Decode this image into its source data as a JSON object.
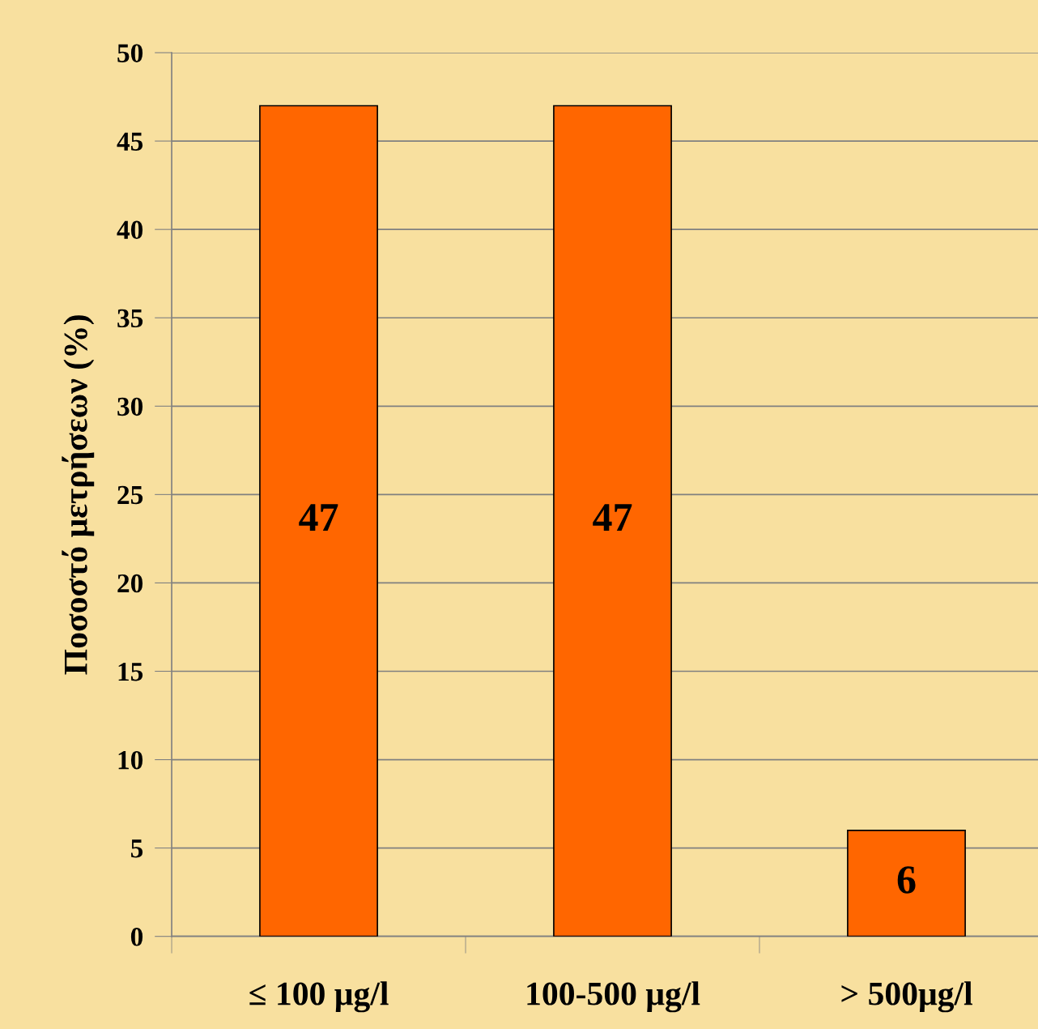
{
  "chart_data": {
    "type": "bar",
    "ylabel": "Ποσοστό μετρήσεων (%)",
    "categories": [
      "≤ 100 μg/l",
      "100-500 μg/l",
      "> 500μg/l"
    ],
    "values": [
      47,
      47,
      6
    ],
    "color": "#ff6600",
    "ylim": [
      0,
      50
    ],
    "yticks": [
      0,
      5,
      10,
      15,
      20,
      25,
      30,
      35,
      40,
      45,
      50
    ],
    "grid": "y",
    "data_labels": true
  }
}
